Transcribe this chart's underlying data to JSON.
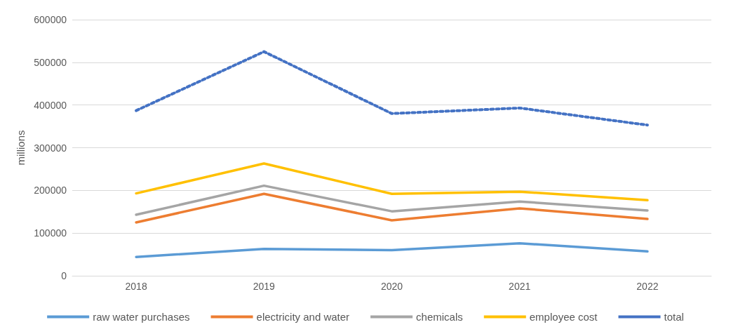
{
  "chart_data": {
    "type": "line",
    "ylabel": "millions",
    "categories": [
      "2018",
      "2019",
      "2020",
      "2021",
      "2022"
    ],
    "series": [
      {
        "name": "raw water purchases",
        "color": "#5b9bd5",
        "values": [
          44000,
          63000,
          60000,
          76000,
          57000
        ]
      },
      {
        "name": "electricity and water",
        "color": "#ed7d31",
        "values": [
          125000,
          192000,
          130000,
          158000,
          133000
        ]
      },
      {
        "name": "chemicals",
        "color": "#a5a5a5",
        "values": [
          143000,
          211000,
          151000,
          174000,
          153000
        ]
      },
      {
        "name": "employee cost",
        "color": "#ffc000",
        "values": [
          193000,
          263000,
          192000,
          197000,
          177000
        ]
      },
      {
        "name": "total",
        "color": "#4472c4",
        "line_style": "dotted",
        "values": [
          387000,
          525000,
          380000,
          393000,
          353000
        ]
      }
    ],
    "ylim": [
      0,
      600000
    ],
    "yticks": [
      0,
      100000,
      200000,
      300000,
      400000,
      500000,
      600000
    ],
    "grid": "y",
    "legend": "bottom",
    "marker": "none",
    "line_style": "solid"
  }
}
